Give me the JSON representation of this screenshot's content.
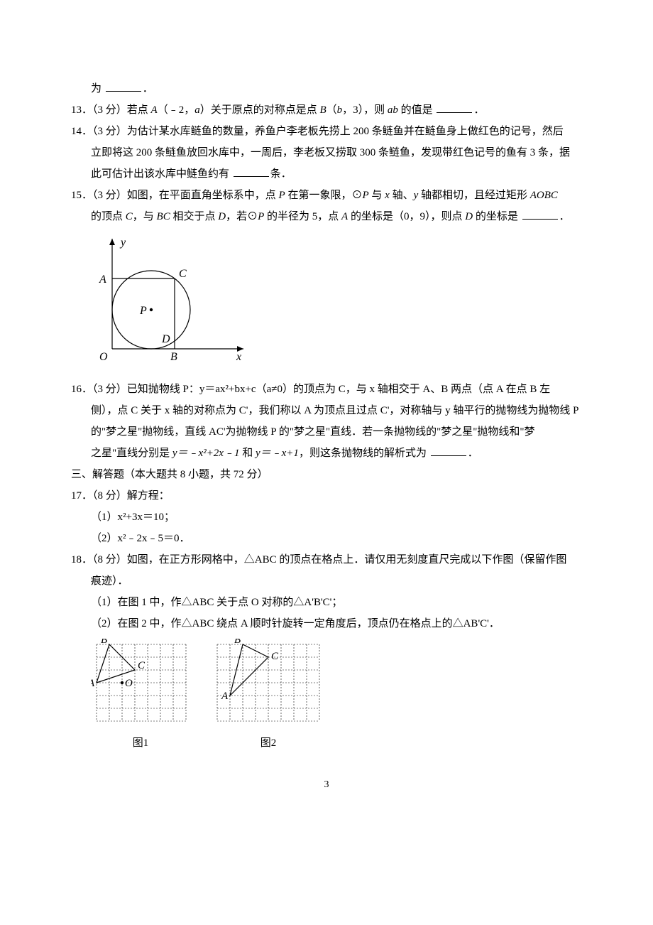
{
  "q12": {
    "tail": "为",
    "period": "．"
  },
  "q13": {
    "prefix": "13．（3 分）若点 ",
    "A": "A",
    "p1": "（﹣2，",
    "a": "a",
    "p2": "）关于原点的对称点是点 ",
    "B": "B",
    "p3": "（",
    "b": "b",
    "p4": "，3），则 ",
    "ab": "ab",
    "p5": " 的值是",
    "period": "．"
  },
  "q14": {
    "l1a": "14．（3 分）为估计某水库鲢鱼的数量，养鱼户李老板先捞上 200 条鲢鱼并在鲢鱼身上做红色的记号，然后",
    "l2a": "立即将这 200 条鲢鱼放回水库中，一周后，李老板又捞取 300 条鲢鱼，发现带红色记号的鱼有 3 条，据",
    "l3a": "此可估计出该水库中鲢鱼约有",
    "l3b": "条．"
  },
  "q15": {
    "l1a": "15．（3 分）如图，在平面直角坐标系中，点 ",
    "P1": "P",
    "l1b": " 在第一象限，⊙",
    "P2": "P",
    "l1c": " 与 ",
    "x1": "x",
    "l1d": " 轴、",
    "y1": "y",
    "l1e": " 轴都相切，且经过矩形 ",
    "AOBC": "AOBC",
    "l2a": "的顶点 ",
    "C1": "C",
    "l2b": "，与 ",
    "BC": "BC",
    "l2c": " 相交于点 ",
    "D1": "D",
    "l2d": "，若⊙",
    "P3": "P",
    "l2e": " 的半径为 5，点 ",
    "A1": "A",
    "l2f": " 的坐标是（0，9），则点 ",
    "D2": "D",
    "l2g": " 的坐标是",
    "period": "．",
    "fig": {
      "y": "y",
      "A": "A",
      "C": "C",
      "P": "P",
      "D": "D",
      "O": "O",
      "B": "B",
      "x": "x"
    }
  },
  "q16": {
    "l1": "16．（3 分）已知抛物线 P：y＝ax²+bx+c（a≠0）的顶点为 C，与 x 轴相交于 A、B 两点（点 A 在点 B 左",
    "l2": "侧），点 C 关于 x 轴的对称点为 C'，我们称以 A 为顶点且过点 C'，对称轴与 y 轴平行的抛物线为抛物线 P",
    "l3": "的\"梦之星\"抛物线，直线 AC'为抛物线 P 的\"梦之星\"直线．若一条抛物线的\"梦之星\"抛物线和\"梦",
    "l4a": "之星\"直线分别是 ",
    "eq1": "y＝﹣x²+2x﹣1",
    "l4b": " 和 ",
    "eq2": "y＝﹣x+1",
    "l4c": "，则这条抛物线的解析式为",
    "period": "．"
  },
  "sec3": "三、解答题（本大题共 8 小题，共 72 分）",
  "q17": {
    "head": "17．（8 分）解方程：",
    "p1": "（1）x²+3x＝10；",
    "p2": "（2）x²﹣2x﹣5＝0．"
  },
  "q18": {
    "l1": "18．（8 分）如图，在正方形网格中，△ABC 的顶点在格点上．请仅用无刻度直尺完成以下作图（保留作图",
    "l2": "痕迹）．",
    "p1": "（1）在图 1 中，作△ABC 关于点 O 对称的△A'B'C'；",
    "p2": "（2）在图 2 中，作△ABC 绕点 A 顺时针旋转一定角度后，顶点仍在格点上的△AB'C'．",
    "fig": {
      "A": "A",
      "B": "B",
      "C": "C",
      "O": "O",
      "cap1": "图1",
      "cap2": "图2"
    }
  },
  "pagenum": "3",
  "svg": {
    "q15": {
      "stroke": "#000000",
      "line_width": 1.2,
      "arrow_width": 1.2,
      "font": "italic 16px 'Times New Roman', serif",
      "font_rm": "16px 'Times New Roman', serif"
    },
    "grid": {
      "dash": "2 2",
      "stroke": "#000000",
      "tri_width": 1.2,
      "font": "italic 15px 'Times New Roman', serif"
    }
  }
}
